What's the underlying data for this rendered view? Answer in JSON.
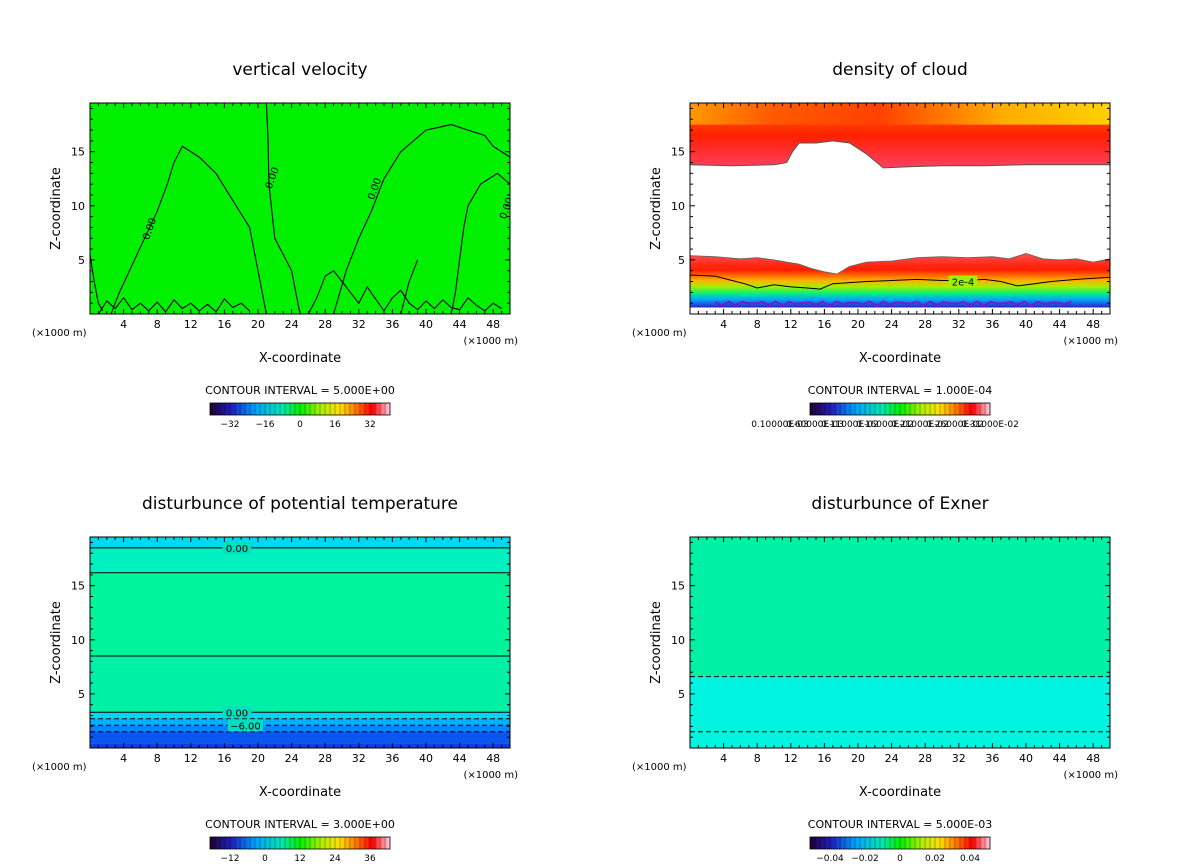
{
  "chart_data": [
    {
      "type": "heatmap",
      "title": "vertical velocity",
      "xlabel": "X-coordinate",
      "ylabel": "Z-coordinate",
      "x_unit": "(×1000 m)",
      "xlim": [
        0,
        50
      ],
      "ylim": [
        0,
        19.5
      ],
      "x_ticks": [
        4,
        8,
        12,
        16,
        20,
        24,
        28,
        32,
        36,
        40,
        44,
        48
      ],
      "y_ticks": [
        5,
        10,
        15
      ],
      "contour_interval": "CONTOUR INTERVAL = 5.000E+00",
      "colorbar_ticks": [
        "−32",
        "−16",
        "0",
        "16",
        "32"
      ],
      "contour_labels": [
        {
          "text": "0.00",
          "x": 7.0,
          "y": 7.9
        },
        {
          "text": "0.00",
          "x": 21.6,
          "y": 12.6
        },
        {
          "text": "0.00",
          "x": 33.8,
          "y": 11.6
        },
        {
          "text": "0.00",
          "x": 49.5,
          "y": 9.8
        }
      ],
      "fill_color": "#00f000",
      "contours": [
        [
          [
            0,
            5.5
          ],
          [
            0.5,
            3
          ],
          [
            1,
            1
          ],
          [
            1.5,
            0.3
          ]
        ],
        [
          [
            2.5,
            0
          ],
          [
            3.5,
            2
          ],
          [
            5,
            4.5
          ],
          [
            6.5,
            7
          ],
          [
            8,
            9.5
          ],
          [
            9.2,
            12
          ],
          [
            10,
            14
          ],
          [
            11,
            15.5
          ],
          [
            13,
            14.5
          ],
          [
            15,
            13
          ],
          [
            17,
            10.5
          ],
          [
            19,
            8
          ],
          [
            20,
            4
          ],
          [
            20.5,
            2
          ],
          [
            21,
            0
          ]
        ],
        [
          [
            21,
            19.5
          ],
          [
            21.2,
            16
          ],
          [
            21.3,
            12
          ],
          [
            22,
            7
          ],
          [
            24,
            4
          ],
          [
            24.5,
            2
          ],
          [
            25,
            0
          ]
        ],
        [
          [
            29,
            0
          ],
          [
            30.5,
            4
          ],
          [
            32,
            7
          ],
          [
            33.5,
            9.5
          ],
          [
            35,
            12.5
          ],
          [
            37,
            15
          ],
          [
            40,
            17
          ],
          [
            43,
            17.5
          ],
          [
            45,
            17
          ],
          [
            47,
            16.5
          ],
          [
            48,
            15.5
          ],
          [
            50,
            14.5
          ]
        ],
        [
          [
            37,
            0
          ],
          [
            38,
            3
          ],
          [
            39,
            5
          ]
        ],
        [
          [
            50,
            12
          ],
          [
            48.5,
            13
          ],
          [
            46.5,
            12
          ],
          [
            45,
            10
          ],
          [
            44.5,
            8
          ],
          [
            44,
            5
          ],
          [
            43.5,
            2
          ],
          [
            43,
            0
          ]
        ],
        [
          [
            1,
            0
          ],
          [
            2,
            1.2
          ],
          [
            3,
            0.5
          ],
          [
            4,
            1.5
          ],
          [
            5,
            0.4
          ],
          [
            6,
            1
          ],
          [
            7,
            0.3
          ],
          [
            8,
            1.1
          ],
          [
            9,
            0.2
          ],
          [
            10,
            1.3
          ],
          [
            11,
            0.5
          ],
          [
            12,
            1
          ],
          [
            13,
            0.3
          ],
          [
            14,
            0.9
          ],
          [
            15,
            0.2
          ],
          [
            16,
            1.4
          ],
          [
            17,
            0.6
          ],
          [
            18,
            1
          ],
          [
            19,
            0.3
          ]
        ],
        [
          [
            26,
            0
          ],
          [
            27,
            1.5
          ],
          [
            28,
            3.5
          ],
          [
            29,
            4
          ],
          [
            30,
            3
          ],
          [
            31,
            2
          ],
          [
            32,
            1
          ],
          [
            33,
            2.5
          ],
          [
            34,
            1.4
          ],
          [
            35,
            0.3
          ],
          [
            36,
            1.5
          ],
          [
            37,
            2.2
          ],
          [
            38,
            1
          ],
          [
            39,
            0.4
          ],
          [
            40,
            1.2
          ],
          [
            41,
            0.5
          ],
          [
            42,
            1.3
          ],
          [
            43,
            0.6
          ],
          [
            44,
            0.4
          ],
          [
            45,
            1.5
          ],
          [
            46,
            0.8
          ],
          [
            47,
            0.3
          ],
          [
            48,
            1
          ],
          [
            49,
            0.5
          ]
        ]
      ]
    },
    {
      "type": "heatmap",
      "title": "density of cloud",
      "xlabel": "X-coordinate",
      "ylabel": "Z-coordinate",
      "x_unit": "(×1000 m)",
      "xlim": [
        0,
        50
      ],
      "ylim": [
        0,
        19.5
      ],
      "x_ticks": [
        4,
        8,
        12,
        16,
        20,
        24,
        28,
        32,
        36,
        40,
        44,
        48
      ],
      "y_ticks": [
        5,
        10,
        15
      ],
      "contour_interval": "CONTOUR INTERVAL = 1.000E-04",
      "colorbar_ticks": [
        "0.10000E-03",
        "0.60000E-03",
        "0.11000E-02",
        "0.16000E-02",
        "0.21000E-02",
        "0.26000E-02",
        "0.31000E-02"
      ],
      "contour_labels": [
        {
          "text": "2e-4",
          "x": 32.5,
          "y": 3.0
        }
      ],
      "upper_cloud_base": [
        [
          0,
          13.8
        ],
        [
          5,
          13.7
        ],
        [
          10,
          13.8
        ],
        [
          11.5,
          14
        ],
        [
          12.2,
          15
        ],
        [
          13,
          15.8
        ],
        [
          15,
          15.8
        ],
        [
          17,
          16
        ],
        [
          19,
          15.8
        ],
        [
          21,
          14.8
        ],
        [
          23,
          13.5
        ],
        [
          26,
          13.6
        ],
        [
          30,
          13.7
        ],
        [
          35,
          13.7
        ],
        [
          40,
          13.8
        ],
        [
          45,
          13.8
        ],
        [
          50,
          13.8
        ]
      ],
      "lower_cloud_top": [
        [
          0,
          5.4
        ],
        [
          3,
          5.3
        ],
        [
          6,
          5.1
        ],
        [
          8,
          5.2
        ],
        [
          10,
          5
        ],
        [
          13,
          4.6
        ],
        [
          14.5,
          4.2
        ],
        [
          16,
          3.9
        ],
        [
          17.5,
          3.7
        ],
        [
          19,
          4.4
        ],
        [
          21,
          4.8
        ],
        [
          24,
          4.9
        ],
        [
          27,
          5.2
        ],
        [
          30,
          5.3
        ],
        [
          33,
          5.2
        ],
        [
          36,
          5.3
        ],
        [
          38,
          5.1
        ],
        [
          40,
          5.6
        ],
        [
          42,
          5.1
        ],
        [
          44,
          5
        ],
        [
          46,
          5.1
        ],
        [
          48,
          4.8
        ],
        [
          50,
          5.1
        ]
      ],
      "cloud_2e4_contour": [
        [
          0,
          3.6
        ],
        [
          3,
          3.5
        ],
        [
          5,
          3.1
        ],
        [
          6.5,
          2.8
        ],
        [
          8,
          2.4
        ],
        [
          10,
          2.7
        ],
        [
          12,
          2.5
        ],
        [
          14,
          2.4
        ],
        [
          15.5,
          2.3
        ],
        [
          17,
          2.8
        ],
        [
          19,
          2.9
        ],
        [
          21,
          3
        ],
        [
          24,
          3.1
        ],
        [
          27,
          3.2
        ],
        [
          30,
          3.1
        ],
        [
          33,
          3.1
        ],
        [
          35,
          3.2
        ],
        [
          37,
          3
        ],
        [
          39,
          2.6
        ],
        [
          41,
          2.8
        ],
        [
          43,
          3
        ],
        [
          46,
          3.2
        ],
        [
          50,
          3.4
        ]
      ]
    },
    {
      "type": "heatmap",
      "title": "disturbunce of potential temperature",
      "xlabel": "X-coordinate",
      "ylabel": "Z-coordinate",
      "x_unit": "(×1000 m)",
      "xlim": [
        0,
        50
      ],
      "ylim": [
        0,
        19.5
      ],
      "x_ticks": [
        4,
        8,
        12,
        16,
        20,
        24,
        28,
        32,
        36,
        40,
        44,
        48
      ],
      "y_ticks": [
        5,
        10,
        15
      ],
      "contour_interval": "CONTOUR INTERVAL = 3.000E+00",
      "colorbar_ticks": [
        "−12",
        "0",
        "12",
        "24",
        "36"
      ],
      "contour_labels": [
        {
          "text": "0.00",
          "x": 17.5,
          "y": 18.5
        },
        {
          "text": "0.00",
          "x": 17.5,
          "y": 3.3
        },
        {
          "text": "−6.00",
          "x": 18.5,
          "y": 2.1
        }
      ],
      "solid_levels": [
        18.5,
        16.2,
        8.5,
        3.3
      ],
      "dashed_levels": [
        2.7,
        2.1,
        1.5
      ],
      "bands": [
        {
          "from": 0,
          "to": 0.4,
          "color": "#1838e0"
        },
        {
          "from": 0.4,
          "to": 1.5,
          "color": "#0a56f0"
        },
        {
          "from": 1.5,
          "to": 2.1,
          "color": "#0884ff"
        },
        {
          "from": 2.1,
          "to": 2.7,
          "color": "#00b0ff"
        },
        {
          "from": 2.7,
          "to": 3.3,
          "color": "#00d8f4"
        },
        {
          "from": 3.3,
          "to": 8.5,
          "color": "#00f0a8"
        },
        {
          "from": 8.5,
          "to": 16.2,
          "color": "#00f59a"
        },
        {
          "from": 16.2,
          "to": 18.5,
          "color": "#00f0c0"
        },
        {
          "from": 18.5,
          "to": 19.5,
          "color": "#00d8f0"
        }
      ]
    },
    {
      "type": "heatmap",
      "title": "disturbunce of Exner",
      "xlabel": "X-coordinate",
      "ylabel": "Z-coordinate",
      "x_unit": "(×1000 m)",
      "xlim": [
        0,
        50
      ],
      "ylim": [
        0,
        19.5
      ],
      "x_ticks": [
        4,
        8,
        12,
        16,
        20,
        24,
        28,
        32,
        36,
        40,
        44,
        48
      ],
      "y_ticks": [
        5,
        10,
        15
      ],
      "contour_interval": "CONTOUR INTERVAL = 5.000E-03",
      "colorbar_ticks": [
        "−0.04",
        "−0.02",
        "0",
        "0.02",
        "0.04"
      ],
      "dashed_levels": [
        6.6,
        1.5
      ],
      "bands": [
        {
          "from": 0,
          "to": 6.6,
          "color": "#00f4e0"
        },
        {
          "from": 6.6,
          "to": 19.5,
          "color": "#00f0a6"
        }
      ]
    }
  ]
}
